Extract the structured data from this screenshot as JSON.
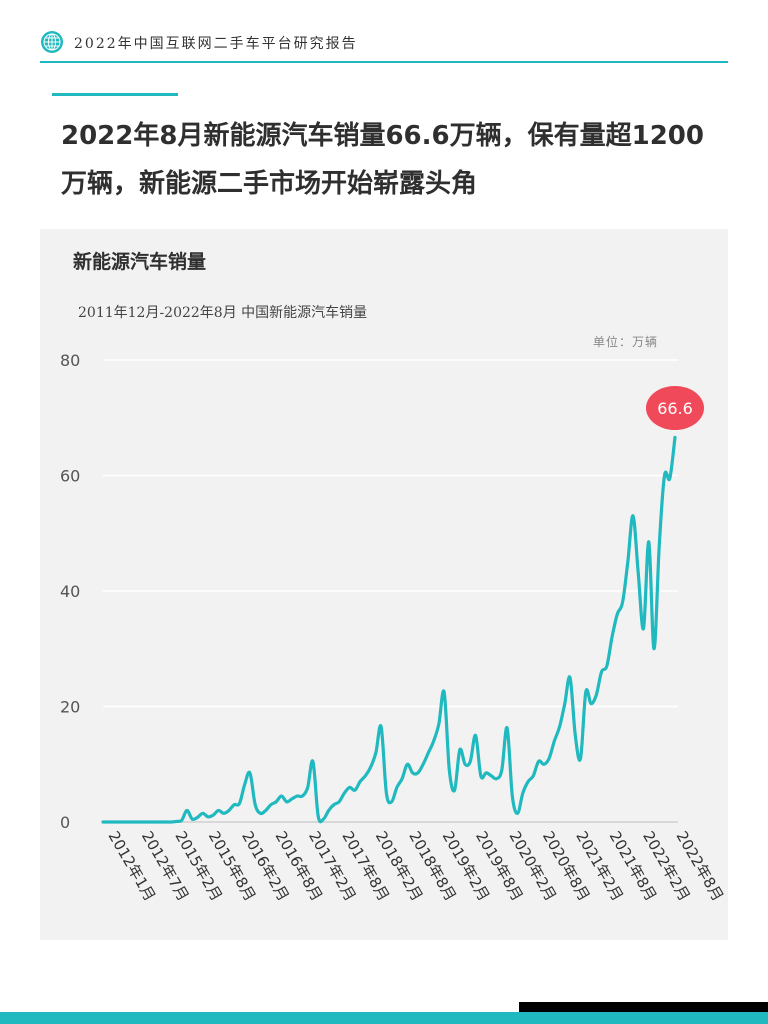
{
  "header": {
    "title": "2022年中国互联网二手车平台研究报告"
  },
  "headline": {
    "line1": "2022年8月新能源汽车销量66.6万辆，保有量超1200",
    "line2": "万辆，新能源二手市场开始崭露头角"
  },
  "panel": {
    "title": "新能源汽车销量",
    "subtitle": "2011年12月-2022年8月 中国新能源汽车销量",
    "unit": "单位：万辆"
  },
  "colors": {
    "accent": "#1fb9bf",
    "line": "#1fb9bf",
    "callout": "#f04a5a"
  },
  "chart_data": {
    "type": "line",
    "ylim": [
      0,
      80
    ],
    "yticks": [
      0,
      20,
      40,
      60,
      80
    ],
    "grid": true,
    "xtick_labels": [
      "2012年1月",
      "2012年7月",
      "2015年2月",
      "2015年8月",
      "2016年2月",
      "2016年8月",
      "2017年2月",
      "2017年8月",
      "2018年2月",
      "2018年8月",
      "2019年2月",
      "2019年8月",
      "2020年2月",
      "2020年8月",
      "2021年2月",
      "2021年8月",
      "2022年2月",
      "2022年8月"
    ],
    "callout": {
      "label": "66.6",
      "value": 66.6
    },
    "series": [
      {
        "values": [
          0,
          0,
          0,
          0,
          0,
          0,
          0,
          0,
          0,
          0,
          0,
          0,
          0,
          0,
          0.1,
          0.3,
          2,
          0.5,
          0.8,
          1.5,
          0.9,
          1.2,
          2,
          1.5,
          2,
          3,
          3.2,
          6.5,
          8.5,
          3,
          1.5,
          2,
          3,
          3.5,
          4.5,
          3.5,
          4,
          4.5,
          4.5,
          6,
          10.5,
          1,
          0.5,
          2,
          3,
          3.5,
          5,
          6,
          5.5,
          7,
          8,
          9.5,
          12,
          16.5,
          5,
          3.5,
          6,
          7.5,
          10,
          8.5,
          8.5,
          10,
          12,
          14,
          17,
          22.5,
          9,
          5.5,
          12.5,
          10,
          10.5,
          15,
          8,
          8.5,
          8,
          7.5,
          9,
          16.3,
          4.5,
          1.5,
          5,
          7,
          8,
          10.5,
          10,
          11,
          14,
          16.5,
          20.5,
          25,
          15,
          11,
          22.5,
          20.5,
          22,
          26,
          27,
          32,
          36,
          38,
          45,
          53,
          43,
          33.5,
          48.5,
          30,
          48,
          60,
          59.5,
          66.6
        ]
      }
    ]
  }
}
